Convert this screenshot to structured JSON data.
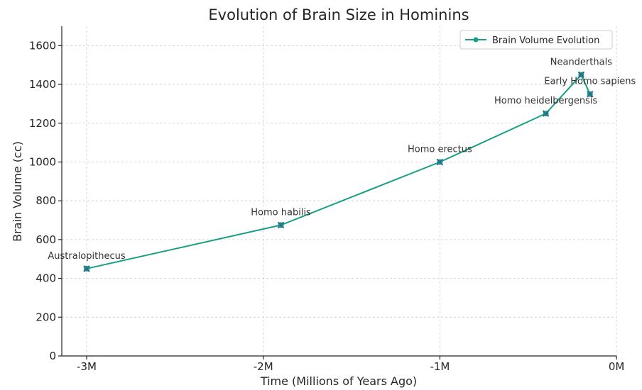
{
  "chart_data": {
    "type": "line",
    "title": "Evolution of Brain Size in Hominins",
    "xlabel": "Time (Millions of Years Ago)",
    "ylabel": "Brain Volume (cc)",
    "xlim": [
      -3.15,
      0
    ],
    "ylim": [
      0,
      1700
    ],
    "x_ticks": [
      -3,
      -2,
      -1,
      0
    ],
    "x_tick_labels": [
      "-3M",
      "-2M",
      "-1M",
      "0M"
    ],
    "y_ticks": [
      0,
      200,
      400,
      600,
      800,
      1000,
      1200,
      1400,
      1600
    ],
    "y_tick_labels": [
      "0",
      "200",
      "400",
      "600",
      "800",
      "1000",
      "1200",
      "1400",
      "1600"
    ],
    "grid": true,
    "legend_position": "top-right",
    "series": [
      {
        "name": "Brain Volume Evolution",
        "color": "#17a085",
        "points": [
          {
            "label": "Australopithecus",
            "x": -3.0,
            "y": 450
          },
          {
            "label": "Homo habilis",
            "x": -1.9,
            "y": 675
          },
          {
            "label": "Homo erectus",
            "x": -1.0,
            "y": 1000
          },
          {
            "label": "Homo heidelbergensis",
            "x": -0.4,
            "y": 1250
          },
          {
            "label": "Neanderthals",
            "x": -0.2,
            "y": 1450
          },
          {
            "label": "Early Homo sapiens",
            "x": -0.15,
            "y": 1350
          }
        ]
      }
    ],
    "marker_color": "#2b6f8c"
  }
}
